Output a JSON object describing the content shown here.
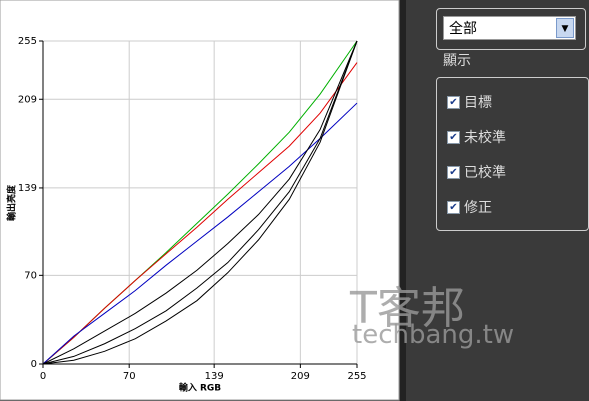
{
  "chart_data": {
    "type": "line",
    "x_label": "輸入 RGB",
    "y_label": "輸出亮度",
    "x": [
      0,
      25,
      50,
      75,
      100,
      125,
      150,
      175,
      200,
      225,
      255
    ],
    "xlim": [
      0,
      255
    ],
    "xticks": [
      0,
      70,
      139,
      209,
      255
    ],
    "ylim": [
      0,
      255
    ],
    "yticks": [
      0,
      70,
      139,
      209,
      255
    ],
    "grid": true,
    "series": [
      {
        "color": "#00b000",
        "values": [
          0,
          21,
          44,
          66,
          88,
          111,
          134,
          158,
          183,
          213,
          255
        ]
      },
      {
        "color": "#e00000",
        "values": [
          0,
          21,
          44,
          66,
          87,
          108,
          130,
          151,
          172,
          198,
          238
        ]
      },
      {
        "color": "#0000c0",
        "values": [
          0,
          22,
          40,
          58,
          78,
          97,
          116,
          136,
          156,
          178,
          206
        ]
      },
      {
        "color": "#000000",
        "values": [
          0,
          12,
          26,
          40,
          56,
          74,
          95,
          118,
          146,
          185,
          255
        ]
      },
      {
        "color": "#000000",
        "values": [
          0,
          6,
          16,
          28,
          42,
          60,
          80,
          106,
          136,
          178,
          255
        ]
      },
      {
        "color": "#000000",
        "values": [
          0,
          3,
          10,
          20,
          34,
          50,
          72,
          98,
          130,
          175,
          255
        ]
      }
    ]
  },
  "panel": {
    "select": "全部",
    "section": "顯示",
    "options": [
      "目標",
      "未校準",
      "已校準",
      "修正"
    ]
  },
  "watermark": {
    "brand": "T客邦",
    "site": "techbang.tw"
  }
}
